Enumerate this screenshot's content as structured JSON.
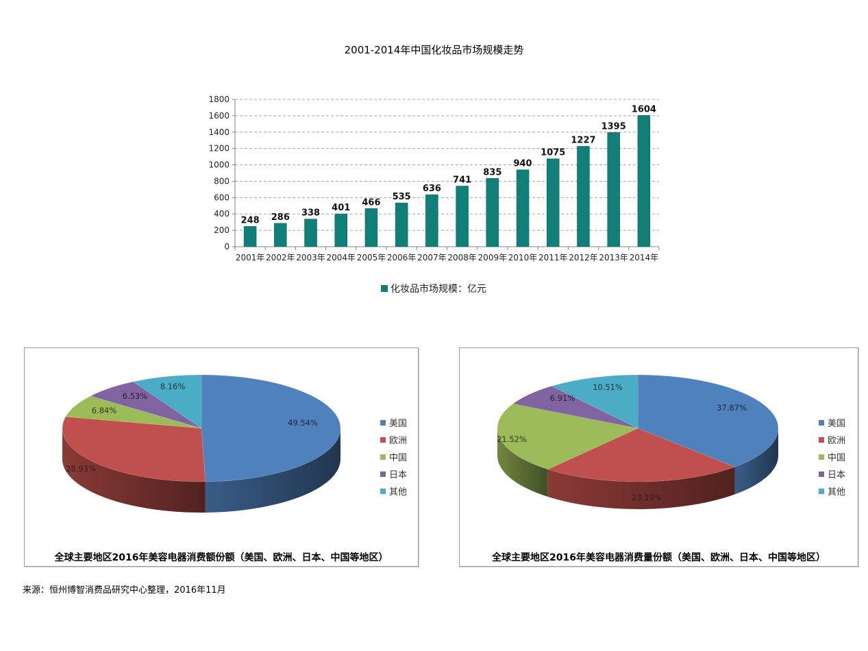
{
  "page": {
    "source_note": "来源：恒州博智消费品研究中心整理，2016年11月"
  },
  "chart_data": [
    {
      "type": "bar",
      "title": "2001-2014年中国化妆品市场规模走势",
      "categories": [
        "2001年",
        "2002年",
        "2003年",
        "2004年",
        "2005年",
        "2006年",
        "2007年",
        "2008年",
        "2009年",
        "2010年",
        "2011年",
        "2012年",
        "2013年",
        "2014年"
      ],
      "series": [
        {
          "name": "化妆品市场规模：亿元",
          "color": "#0f7f78",
          "values": [
            248,
            286,
            338,
            401,
            466,
            535,
            636,
            741,
            835,
            940,
            1075,
            1227,
            1395,
            1604
          ]
        }
      ],
      "xlabel": "",
      "ylabel": "",
      "ylim": [
        0,
        1800
      ],
      "yticks": [
        0,
        200,
        400,
        600,
        800,
        1000,
        1200,
        1400,
        1600,
        1800
      ],
      "grid": "horizontal dashed",
      "data_labels": true,
      "legend_position": "bottom"
    },
    {
      "type": "pie",
      "style": "3d",
      "title": "全球主要地区2016年美容电器消费额份额（美国、欧洲、日本、中国等地区）",
      "categories": [
        "美国",
        "欧洲",
        "中国",
        "日本",
        "其他"
      ],
      "values": [
        49.54,
        28.93,
        6.84,
        6.53,
        8.16
      ],
      "labels": [
        "49.54%",
        "28.93%",
        "6.84%",
        "6.53%",
        "8.16%"
      ],
      "colors": [
        "#4f81bd",
        "#c0504d",
        "#9bbb59",
        "#8064a2",
        "#4bacc6"
      ],
      "legend_position": "right"
    },
    {
      "type": "pie",
      "style": "3d",
      "title": "全球主要地区2016年美容电器消费量份额（美国、欧洲、日本、中国等地区）",
      "categories": [
        "美国",
        "欧洲",
        "中国",
        "日本",
        "其他"
      ],
      "values": [
        37.87,
        23.19,
        21.52,
        6.91,
        10.51
      ],
      "labels": [
        "37.87%",
        "23.19%",
        "21.52%",
        "6.91%",
        "10.51%"
      ],
      "colors": [
        "#4f81bd",
        "#c0504d",
        "#9bbb59",
        "#8064a2",
        "#4bacc6"
      ],
      "legend_position": "right"
    }
  ]
}
